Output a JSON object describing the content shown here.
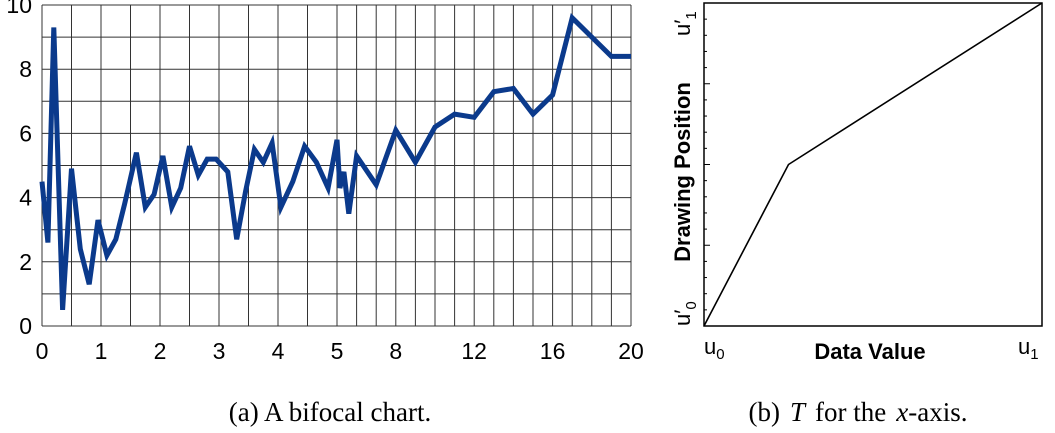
{
  "chart_data": [
    {
      "type": "line",
      "caption": "(a)  A bifocal chart.",
      "x_tick_labels": [
        "0",
        "1",
        "2",
        "3",
        "4",
        "5",
        "8",
        "12",
        "16",
        "20"
      ],
      "y_tick_labels": [
        "0",
        "2",
        "4",
        "6",
        "8",
        "10"
      ],
      "ylim": [
        0,
        10
      ],
      "grid": true,
      "line_color": "#0b3a8c",
      "series": [
        {
          "x": [
            0,
            0.1,
            0.2,
            0.35,
            0.5,
            0.65,
            0.8,
            0.95,
            1.1,
            1.25,
            1.4,
            1.6,
            1.75,
            1.9,
            2.05,
            2.2,
            2.35,
            2.5,
            2.65,
            2.8,
            2.95,
            3.15,
            3.3,
            3.45,
            3.6,
            3.75,
            3.9,
            4.05,
            4.25,
            4.45,
            4.65,
            4.85,
            5.0,
            5.15,
            5.35,
            5.6,
            6,
            7,
            8,
            9,
            10,
            11,
            12,
            13,
            14,
            15,
            16,
            17,
            18,
            19,
            20
          ],
          "y": [
            4.5,
            2.6,
            9.3,
            0.5,
            4.9,
            2.4,
            1.3,
            3.3,
            2.2,
            2.7,
            3.8,
            5.4,
            3.7,
            4.1,
            5.3,
            3.7,
            4.3,
            5.6,
            4.7,
            5.2,
            5.2,
            4.8,
            2.7,
            4.2,
            5.5,
            5.1,
            5.7,
            3.7,
            4.5,
            5.6,
            5.1,
            4.3,
            5.8,
            4.3,
            4.8,
            3.5,
            5.3,
            4.4,
            6.1,
            5.1,
            6.2,
            6.6,
            6.5,
            7.3,
            7.4,
            6.6,
            7.2,
            9.6,
            9.0,
            8.4,
            8.4
          ]
        }
      ]
    },
    {
      "type": "line",
      "caption_prefix": "(b)",
      "caption_italic": "T",
      "caption_mid": "for the",
      "caption_axis": "x",
      "caption_suffix": "-axis.",
      "xlabel": "Data Value",
      "ylabel": "Drawing Position",
      "x_tick_labels": {
        "start": "u",
        "start_sub": "0",
        "end": "u",
        "end_sub": "1"
      },
      "y_tick_labels": {
        "start": "u′",
        "start_sub": "0",
        "end": "u′",
        "end_sub": "1"
      },
      "series": [
        {
          "x": [
            0,
            0.25,
            1
          ],
          "y": [
            0,
            0.5,
            1
          ]
        }
      ]
    }
  ]
}
